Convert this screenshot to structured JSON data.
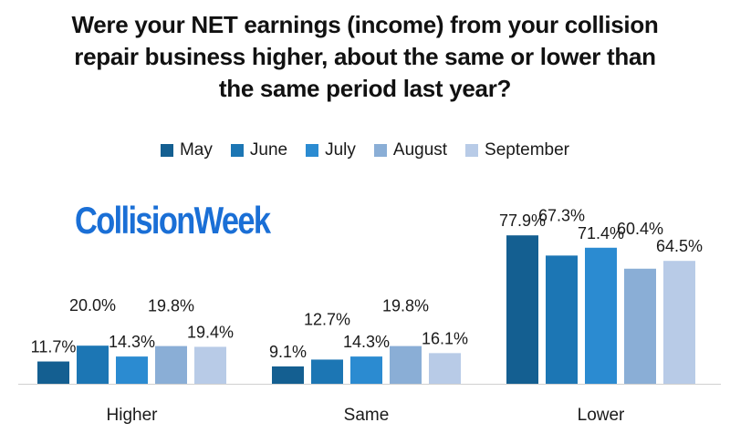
{
  "title_lines": [
    "Were your NET earnings (income) from your collision",
    "repair business higher, about the same or lower than",
    "the same period last year?"
  ],
  "logo_text": "CollisionWeek",
  "logo_color": "#1a6fd6",
  "chart_data": {
    "type": "bar",
    "title": "Were your NET earnings (income) from your collision repair business higher, about the same or lower than the same period last year?",
    "categories": [
      "Higher",
      "Same",
      "Lower"
    ],
    "series": [
      {
        "name": "May",
        "color": "#145f91",
        "values": [
          11.7,
          9.1,
          77.9
        ],
        "labels": [
          "11.7%",
          "9.1%",
          "77.9%"
        ]
      },
      {
        "name": "June",
        "color": "#1c76b4",
        "values": [
          20.0,
          12.7,
          67.3
        ],
        "labels": [
          "20.0%",
          "12.7%",
          "67.3%"
        ]
      },
      {
        "name": "July",
        "color": "#2b8bd1",
        "values": [
          14.3,
          14.3,
          71.4
        ],
        "labels": [
          "14.3%",
          "14.3%",
          "71.4%"
        ]
      },
      {
        "name": "August",
        "color": "#8aaed6",
        "values": [
          19.8,
          19.8,
          60.4
        ],
        "labels": [
          "19.8%",
          "19.8%",
          "60.4%"
        ]
      },
      {
        "name": "September",
        "color": "#b8cbe7",
        "values": [
          19.4,
          16.1,
          64.5
        ],
        "labels": [
          "19.4%",
          "16.1%",
          "64.5%"
        ]
      }
    ],
    "ylim": [
      0,
      100
    ],
    "grid": false,
    "legend_position": "top"
  }
}
